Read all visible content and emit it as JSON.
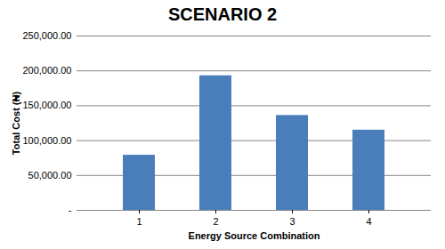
{
  "chart_data": {
    "type": "bar",
    "title": "SCENARIO 2",
    "x_label": "Energy Source Combination",
    "y_label": "Total Cost (₦)",
    "categories": [
      "1",
      "2",
      "3",
      "4"
    ],
    "values": [
      79000,
      193000,
      136000,
      115000
    ],
    "color": "#4a7ebb",
    "ylim": [
      0,
      250000
    ],
    "yticks": [
      {
        "value": 0,
        "label": "-"
      },
      {
        "value": 50000,
        "label": "50,000.00"
      },
      {
        "value": 100000,
        "label": "100,000.00"
      },
      {
        "value": 150000,
        "label": "150,000.00"
      },
      {
        "value": 200000,
        "label": "200,000.00"
      },
      {
        "value": 250000,
        "label": "250,000.00"
      }
    ],
    "grid": true
  }
}
